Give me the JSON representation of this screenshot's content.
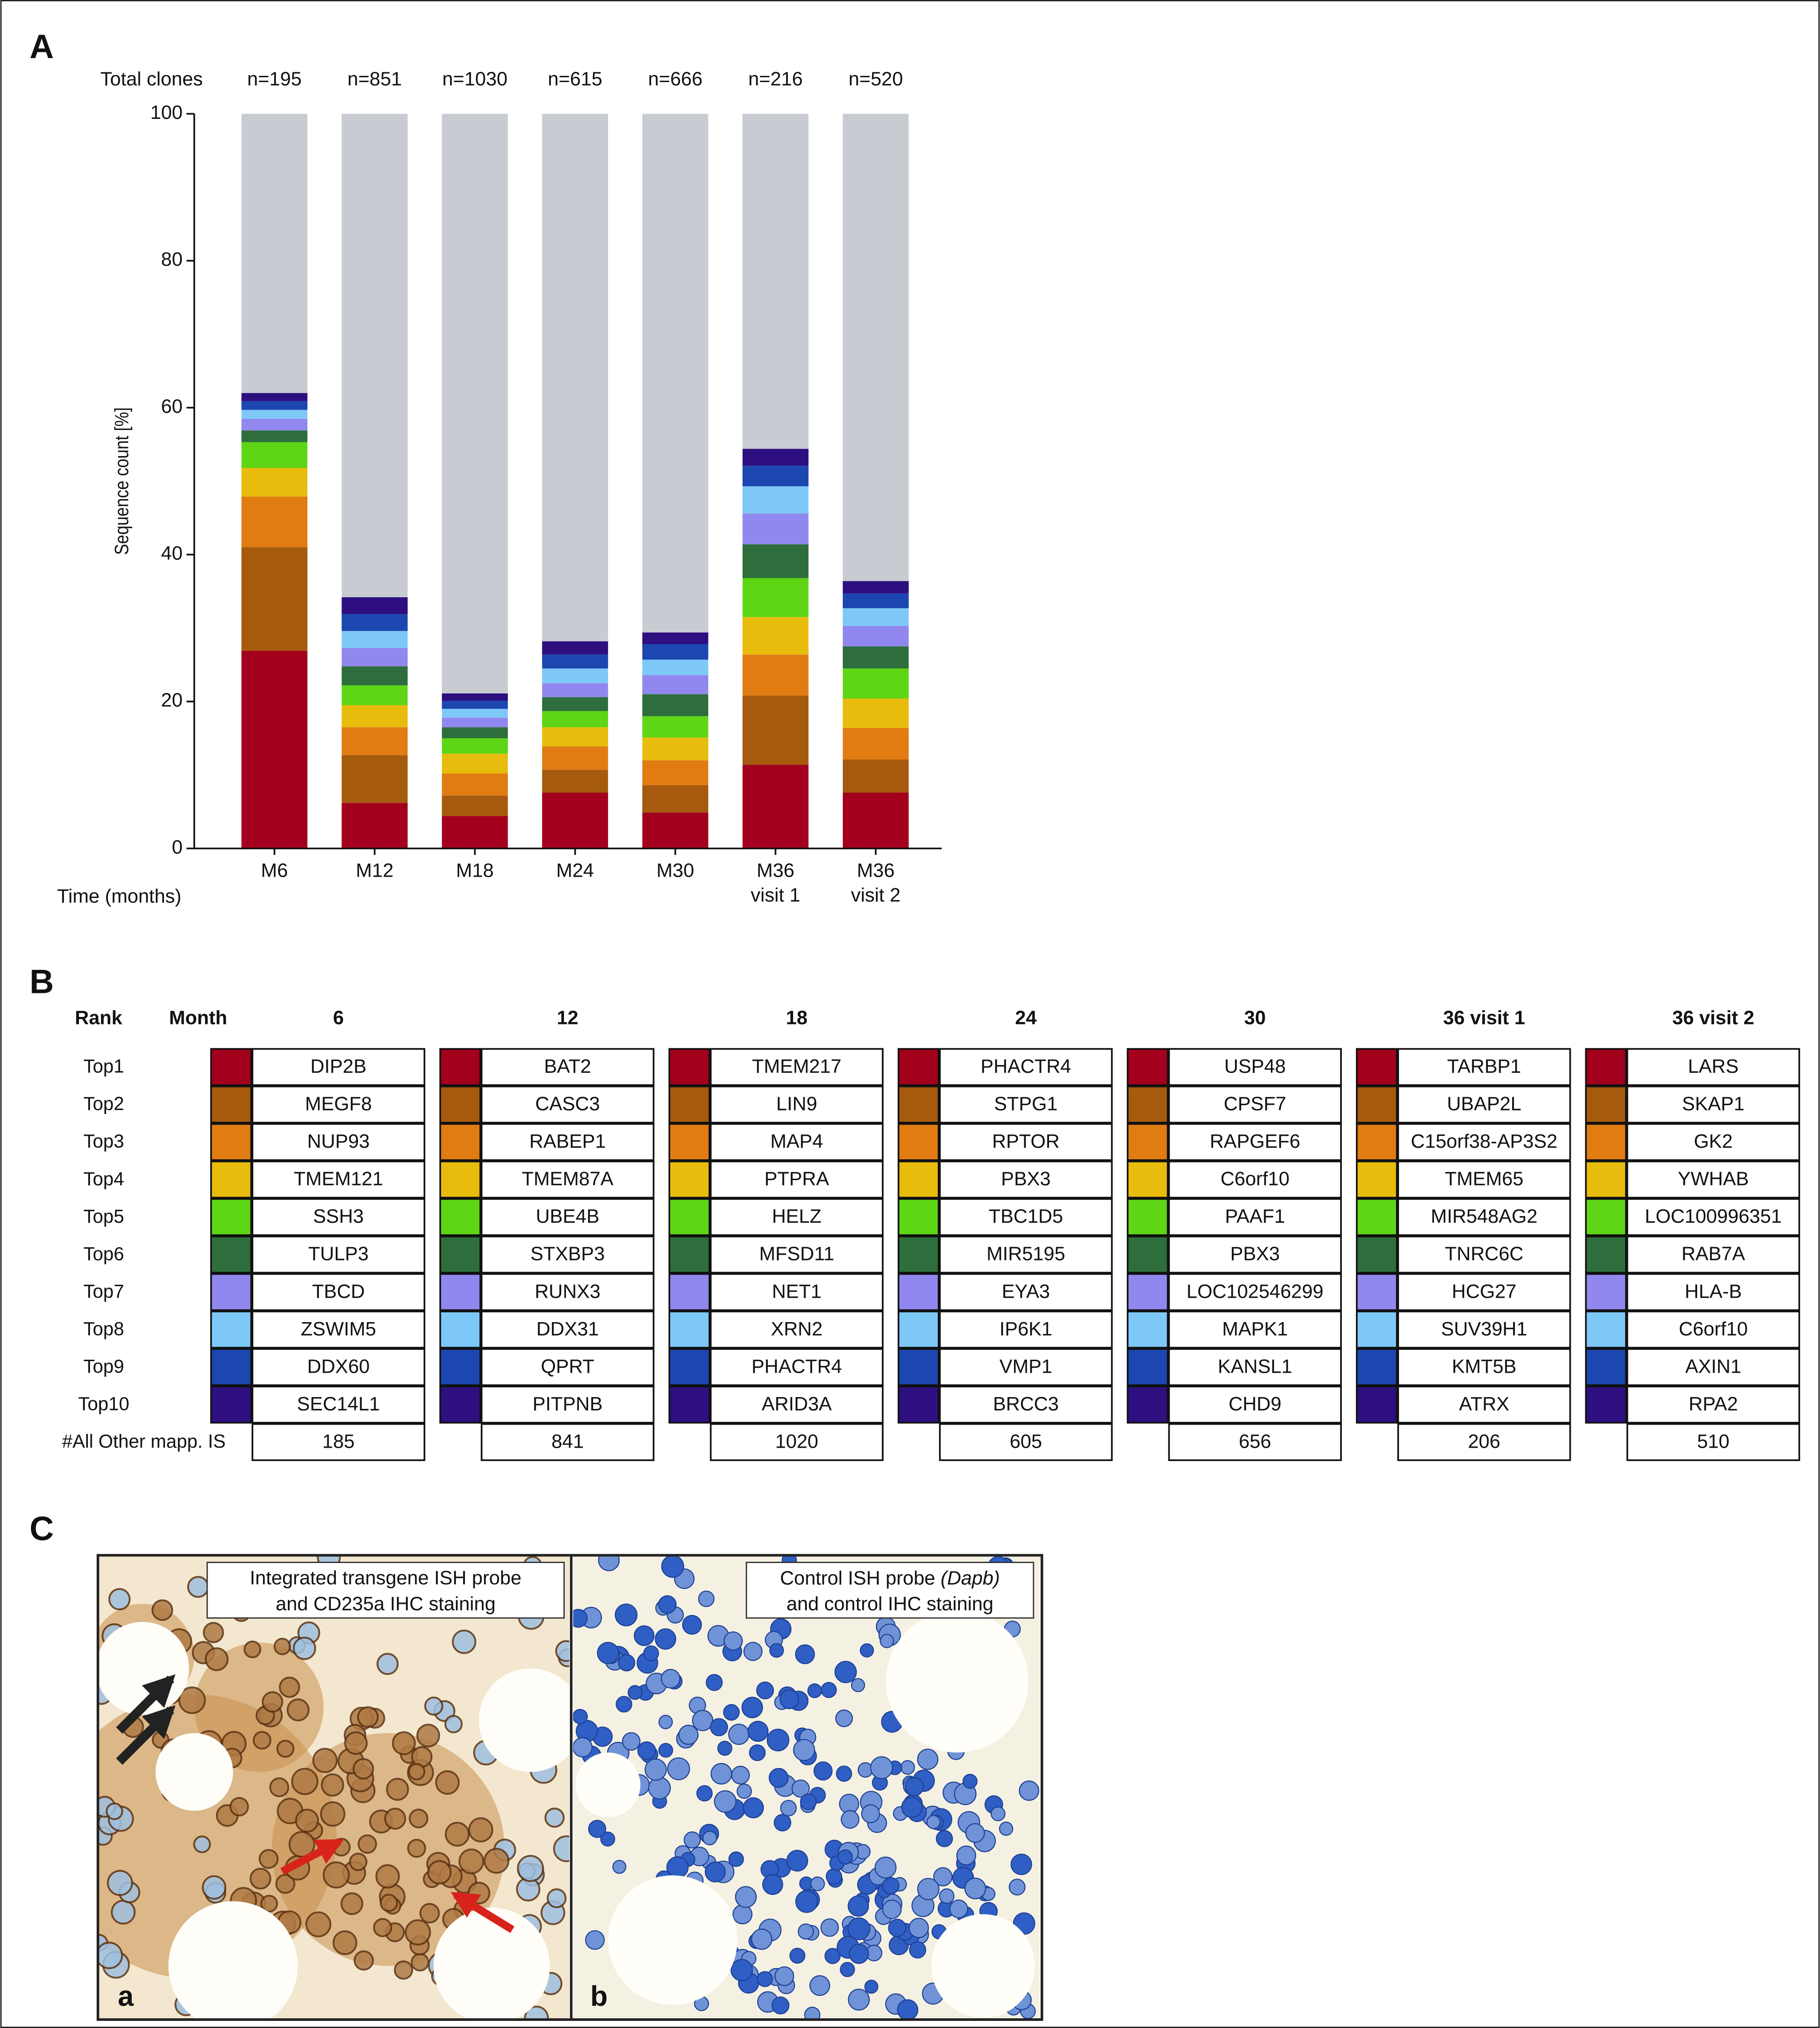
{
  "chart_data": {
    "type": "bar",
    "stacked": true,
    "panel_label": "A",
    "total_clones_label": "Total clones",
    "total_clones": [
      "n=195",
      "n=851",
      "n=1030",
      "n=615",
      "n=666",
      "n=216",
      "n=520"
    ],
    "categories": [
      "M6",
      "M12",
      "M18",
      "M24",
      "M30",
      "M36\nvisit 1",
      "M36\nvisit 2"
    ],
    "xlabel": "Time (months)",
    "ylabel": "Sequence count [%]",
    "ylim": [
      0,
      100
    ],
    "yticks": [
      0,
      20,
      40,
      60,
      80,
      100
    ],
    "series": [
      {
        "name": "Top1",
        "color": "#a3001e",
        "values": [
          26.9,
          6.2,
          4.4,
          7.6,
          4.9,
          11.4,
          7.6
        ]
      },
      {
        "name": "Top2",
        "color": "#a55a0e",
        "values": [
          14.1,
          6.5,
          2.8,
          3.1,
          3.7,
          9.4,
          4.5
        ]
      },
      {
        "name": "Top3",
        "color": "#e07c12",
        "values": [
          6.9,
          3.8,
          3.0,
          3.2,
          3.4,
          5.6,
          4.3
        ]
      },
      {
        "name": "Top4",
        "color": "#e8bc0c",
        "values": [
          3.9,
          3.0,
          2.7,
          2.6,
          3.1,
          5.1,
          4.0
        ]
      },
      {
        "name": "Top5",
        "color": "#5ed615",
        "values": [
          3.5,
          2.7,
          2.1,
          2.2,
          2.9,
          5.3,
          4.1
        ]
      },
      {
        "name": "Top6",
        "color": "#2e6e3c",
        "values": [
          1.6,
          2.6,
          1.5,
          1.9,
          3.0,
          4.6,
          3.0
        ]
      },
      {
        "name": "Top7",
        "color": "#9088ee",
        "values": [
          1.6,
          2.5,
          1.3,
          1.9,
          2.6,
          4.2,
          2.8
        ]
      },
      {
        "name": "Top8",
        "color": "#7ec8f8",
        "values": [
          1.2,
          2.3,
          1.2,
          2.0,
          2.1,
          3.7,
          2.4
        ]
      },
      {
        "name": "Top9",
        "color": "#1c46b0",
        "values": [
          1.2,
          2.3,
          1.1,
          1.9,
          2.1,
          2.8,
          2.0
        ]
      },
      {
        "name": "Top10",
        "color": "#2e0f80",
        "values": [
          1.1,
          2.3,
          1.0,
          1.8,
          1.6,
          2.3,
          1.7
        ]
      },
      {
        "name": "#All Other mapp. IS",
        "color": "#c8ccd2",
        "values": [
          38.0,
          65.8,
          78.9,
          71.8,
          70.6,
          45.6,
          63.6
        ]
      }
    ]
  },
  "table": {
    "panel_label": "B",
    "rank_header": "Rank",
    "month_header": "Month",
    "columns": [
      {
        "month": "6",
        "genes": [
          "DIP2B",
          "MEGF8",
          "NUP93",
          "TMEM121",
          "SSH3",
          "TULP3",
          "TBCD",
          "ZSWIM5",
          "DDX60",
          "SEC14L1"
        ],
        "other": "185"
      },
      {
        "month": "12",
        "genes": [
          "BAT2",
          "CASC3",
          "RABEP1",
          "TMEM87A",
          "UBE4B",
          "STXBP3",
          "RUNX3",
          "DDX31",
          "QPRT",
          "PITPNB"
        ],
        "other": "841"
      },
      {
        "month": "18",
        "genes": [
          "TMEM217",
          "LIN9",
          "MAP4",
          "PTPRA",
          "HELZ",
          "MFSD11",
          "NET1",
          "XRN2",
          "PHACTR4",
          "ARID3A"
        ],
        "other": "1020"
      },
      {
        "month": "24",
        "genes": [
          "PHACTR4",
          "STPG1",
          "RPTOR",
          "PBX3",
          "TBC1D5",
          "MIR5195",
          "EYA3",
          "IP6K1",
          "VMP1",
          "BRCC3"
        ],
        "other": "605"
      },
      {
        "month": "30",
        "genes": [
          "USP48",
          "CPSF7",
          "RAPGEF6",
          "C6orf10",
          "PAAF1",
          "PBX3",
          "LOC102546299",
          "MAPK1",
          "KANSL1",
          "CHD9"
        ],
        "other": "656"
      },
      {
        "month": "36 visit 1",
        "genes": [
          "TARBP1",
          "UBAP2L",
          "C15orf38-AP3S2",
          "TMEM65",
          "MIR548AG2",
          "TNRC6C",
          "HCG27",
          "SUV39H1",
          "KMT5B",
          "ATRX"
        ],
        "other": "206"
      },
      {
        "month": "36 visit 2",
        "genes": [
          "LARS",
          "SKAP1",
          "GK2",
          "YWHAB",
          "LOC100996351",
          "RAB7A",
          "HLA-B",
          "C6orf10",
          "AXIN1",
          "RPA2"
        ],
        "other": "510"
      }
    ]
  },
  "panel_c": {
    "panel_label": "C",
    "caption_a": [
      "Integrated transgene ISH probe",
      "and CD235a IHC staining"
    ],
    "caption_b": [
      "Control ISH probe",
      "(Dapb)",
      "and control IHC staining"
    ],
    "label_a": "a",
    "label_b": "b"
  }
}
